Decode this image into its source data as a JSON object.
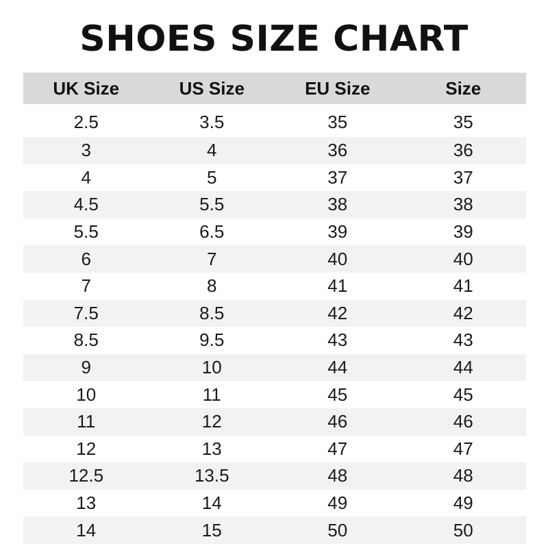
{
  "title": "SHOES SIZE CHART",
  "colors": {
    "header_bg": "#d9d9d9",
    "stripe_bg": "#f2f2f2",
    "text": "#111111"
  },
  "table": {
    "headers": [
      "UK Size",
      "US Size",
      "EU Size",
      "Size"
    ],
    "rows": [
      [
        "2.5",
        "3.5",
        "35",
        "35"
      ],
      [
        "3",
        "4",
        "36",
        "36"
      ],
      [
        "4",
        "5",
        "37",
        "37"
      ],
      [
        "4.5",
        "5.5",
        "38",
        "38"
      ],
      [
        "5.5",
        "6.5",
        "39",
        "39"
      ],
      [
        "6",
        "7",
        "40",
        "40"
      ],
      [
        "7",
        "8",
        "41",
        "41"
      ],
      [
        "7.5",
        "8.5",
        "42",
        "42"
      ],
      [
        "8.5",
        "9.5",
        "43",
        "43"
      ],
      [
        "9",
        "10",
        "44",
        "44"
      ],
      [
        "10",
        "11",
        "45",
        "45"
      ],
      [
        "11",
        "12",
        "46",
        "46"
      ],
      [
        "12",
        "13",
        "47",
        "47"
      ],
      [
        "12.5",
        "13.5",
        "48",
        "48"
      ],
      [
        "13",
        "14",
        "49",
        "49"
      ],
      [
        "14",
        "15",
        "50",
        "50"
      ]
    ]
  }
}
